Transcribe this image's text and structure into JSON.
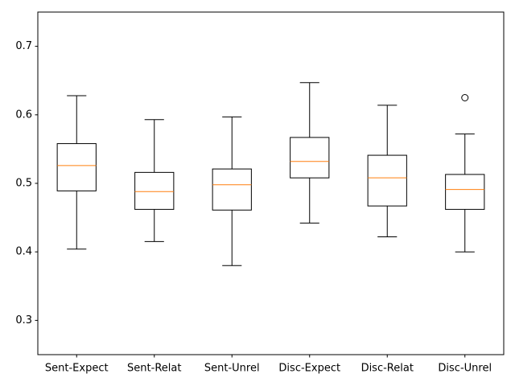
{
  "chart_data": {
    "type": "boxplot",
    "categories": [
      "Sent-Expect",
      "Sent-Relat",
      "Sent-Unrel",
      "Disc-Expect",
      "Disc-Relat",
      "Disc-Unrel"
    ],
    "boxes": [
      {
        "label": "Sent-Expect",
        "whisker_low": 0.404,
        "q1": 0.489,
        "median": 0.526,
        "q3": 0.558,
        "whisker_high": 0.628,
        "outliers": []
      },
      {
        "label": "Sent-Relat",
        "whisker_low": 0.415,
        "q1": 0.462,
        "median": 0.488,
        "q3": 0.516,
        "whisker_high": 0.593,
        "outliers": []
      },
      {
        "label": "Sent-Unrel",
        "whisker_low": 0.38,
        "q1": 0.461,
        "median": 0.498,
        "q3": 0.521,
        "whisker_high": 0.597,
        "outliers": []
      },
      {
        "label": "Disc-Expect",
        "whisker_low": 0.442,
        "q1": 0.508,
        "median": 0.532,
        "q3": 0.567,
        "whisker_high": 0.647,
        "outliers": []
      },
      {
        "label": "Disc-Relat",
        "whisker_low": 0.422,
        "q1": 0.467,
        "median": 0.508,
        "q3": 0.541,
        "whisker_high": 0.614,
        "outliers": []
      },
      {
        "label": "Disc-Unrel",
        "whisker_low": 0.4,
        "q1": 0.462,
        "median": 0.491,
        "q3": 0.513,
        "whisker_high": 0.572,
        "outliers": [
          0.625
        ]
      }
    ],
    "y_ticks": [
      "0.3",
      "0.4",
      "0.5",
      "0.6",
      "0.7"
    ],
    "ylim": [
      0.25,
      0.75
    ],
    "title": "",
    "xlabel": "",
    "ylabel": "",
    "grid": false,
    "colors": {
      "box": "#000000",
      "median": "#ff7f0e",
      "background": "#ffffff"
    }
  }
}
